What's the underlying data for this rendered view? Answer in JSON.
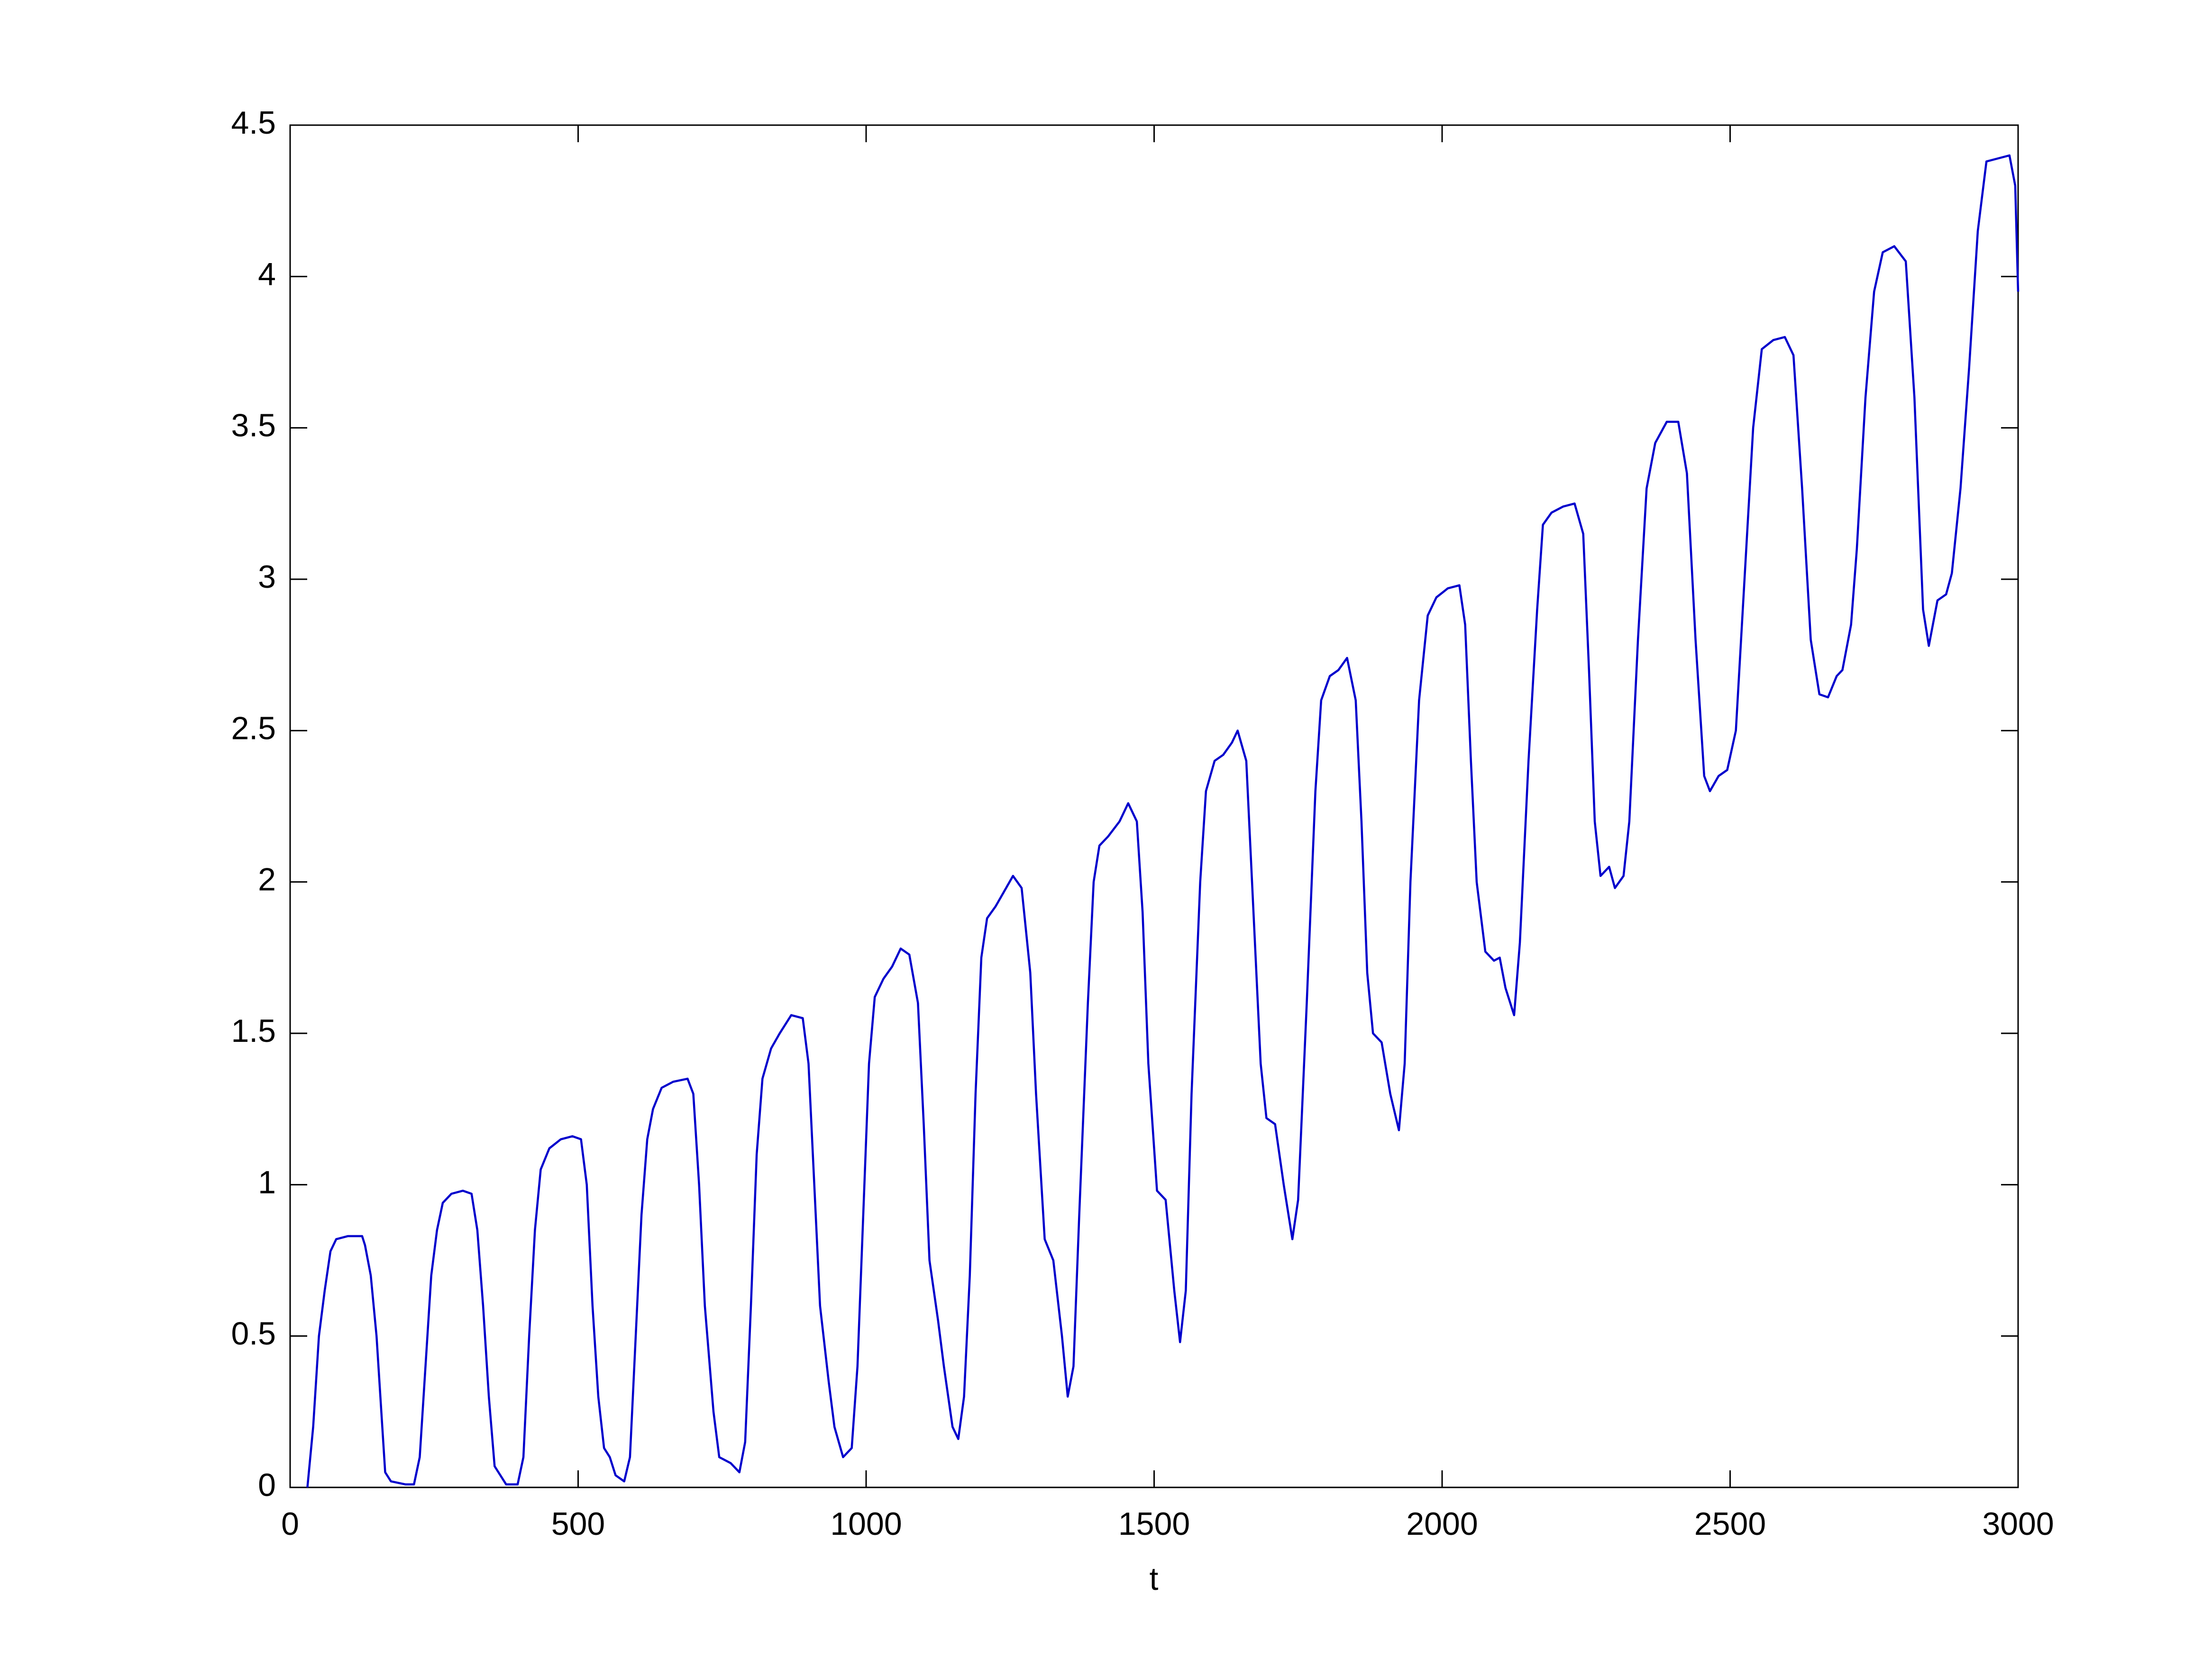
{
  "chart_data": {
    "type": "line",
    "x_label": "t",
    "x": [
      30,
      40,
      50,
      60,
      70,
      80,
      100,
      125,
      130,
      140,
      150,
      160,
      165,
      175,
      200,
      215,
      225,
      235,
      245,
      255,
      265,
      280,
      300,
      315,
      325,
      335,
      345,
      355,
      365,
      375,
      395,
      405,
      415,
      425,
      435,
      450,
      470,
      490,
      505,
      515,
      525,
      535,
      545,
      555,
      565,
      580,
      590,
      600,
      610,
      620,
      630,
      645,
      665,
      690,
      700,
      710,
      720,
      735,
      745,
      765,
      780,
      790,
      800,
      810,
      820,
      835,
      850,
      870,
      890,
      900,
      910,
      920,
      935,
      945,
      960,
      975,
      985,
      995,
      1005,
      1015,
      1030,
      1045,
      1060,
      1075,
      1090,
      1100,
      1110,
      1125,
      1135,
      1150,
      1160,
      1170,
      1180,
      1190,
      1200,
      1210,
      1225,
      1240,
      1255,
      1270,
      1285,
      1295,
      1310,
      1325,
      1340,
      1350,
      1360,
      1370,
      1385,
      1395,
      1405,
      1420,
      1440,
      1455,
      1470,
      1480,
      1490,
      1505,
      1520,
      1535,
      1545,
      1555,
      1565,
      1580,
      1590,
      1605,
      1620,
      1635,
      1645,
      1660,
      1670,
      1685,
      1695,
      1710,
      1725,
      1740,
      1750,
      1765,
      1780,
      1790,
      1805,
      1820,
      1835,
      1850,
      1860,
      1870,
      1880,
      1895,
      1910,
      1925,
      1935,
      1945,
      1960,
      1975,
      1990,
      2010,
      2030,
      2040,
      2050,
      2060,
      2075,
      2090,
      2100,
      2110,
      2125,
      2135,
      2150,
      2165,
      2175,
      2190,
      2210,
      2230,
      2245,
      2255,
      2265,
      2275,
      2290,
      2300,
      2315,
      2325,
      2340,
      2355,
      2370,
      2390,
      2410,
      2425,
      2440,
      2455,
      2465,
      2480,
      2495,
      2510,
      2525,
      2540,
      2555,
      2575,
      2595,
      2610,
      2625,
      2640,
      2655,
      2670,
      2685,
      2695,
      2710,
      2720,
      2735,
      2750,
      2765,
      2785,
      2805,
      2820,
      2835,
      2845,
      2860,
      2875,
      2885,
      2900,
      2915,
      2930,
      2945,
      2965,
      2985,
      2995,
      3000
    ],
    "series": [
      {
        "color": "#0000cc",
        "values": [
          0,
          0.2,
          0.5,
          0.65,
          0.78,
          0.82,
          0.83,
          0.83,
          0.8,
          0.7,
          0.5,
          0.2,
          0.05,
          0.02,
          0.01,
          0.01,
          0.1,
          0.4,
          0.7,
          0.85,
          0.94,
          0.97,
          0.98,
          0.97,
          0.85,
          0.6,
          0.3,
          0.07,
          0.04,
          0.01,
          0.01,
          0.1,
          0.5,
          0.85,
          1.05,
          1.12,
          1.15,
          1.16,
          1.15,
          1.0,
          0.6,
          0.3,
          0.13,
          0.1,
          0.04,
          0.02,
          0.1,
          0.5,
          0.9,
          1.15,
          1.25,
          1.32,
          1.34,
          1.35,
          1.3,
          1.0,
          0.6,
          0.25,
          0.1,
          0.08,
          0.05,
          0.15,
          0.6,
          1.1,
          1.35,
          1.45,
          1.5,
          1.56,
          1.55,
          1.4,
          1.0,
          0.6,
          0.35,
          0.2,
          0.1,
          0.13,
          0.4,
          0.9,
          1.4,
          1.62,
          1.68,
          1.72,
          1.78,
          1.76,
          1.6,
          1.2,
          0.75,
          0.55,
          0.4,
          0.2,
          0.16,
          0.3,
          0.7,
          1.3,
          1.75,
          1.88,
          1.92,
          1.97,
          2.02,
          1.98,
          1.7,
          1.3,
          0.82,
          0.75,
          0.5,
          0.3,
          0.4,
          0.9,
          1.6,
          2.0,
          2.12,
          2.15,
          2.2,
          2.26,
          2.2,
          1.9,
          1.4,
          0.98,
          0.95,
          0.65,
          0.48,
          0.65,
          1.3,
          2.0,
          2.3,
          2.4,
          2.42,
          2.46,
          2.5,
          2.4,
          2.0,
          1.4,
          1.22,
          1.2,
          1.0,
          0.82,
          0.95,
          1.6,
          2.3,
          2.6,
          2.68,
          2.7,
          2.74,
          2.6,
          2.2,
          1.7,
          1.5,
          1.47,
          1.3,
          1.18,
          1.4,
          2.0,
          2.6,
          2.88,
          2.94,
          2.97,
          2.98,
          2.85,
          2.4,
          2.0,
          1.77,
          1.74,
          1.75,
          1.65,
          1.56,
          1.8,
          2.4,
          2.9,
          3.18,
          3.22,
          3.24,
          3.25,
          3.15,
          2.7,
          2.2,
          2.02,
          2.05,
          1.98,
          2.02,
          2.2,
          2.8,
          3.3,
          3.45,
          3.52,
          3.52,
          3.35,
          2.8,
          2.35,
          2.3,
          2.35,
          2.37,
          2.5,
          3.0,
          3.5,
          3.76,
          3.79,
          3.8,
          3.74,
          3.3,
          2.8,
          2.62,
          2.61,
          2.68,
          2.7,
          2.85,
          3.1,
          3.6,
          3.95,
          4.08,
          4.1,
          4.05,
          3.6,
          2.9,
          2.78,
          2.93,
          2.95,
          3.02,
          3.3,
          3.7,
          4.15,
          4.38,
          4.39,
          4.4,
          4.3,
          3.95
        ]
      }
    ],
    "xlim": [
      0,
      3000
    ],
    "xticks": [
      0,
      500,
      1000,
      1500,
      2000,
      2500,
      3000
    ],
    "ylim": [
      0,
      4.5
    ],
    "yticks": [
      0,
      0.5,
      1,
      1.5,
      2,
      2.5,
      3,
      3.5,
      4,
      4.5
    ]
  }
}
